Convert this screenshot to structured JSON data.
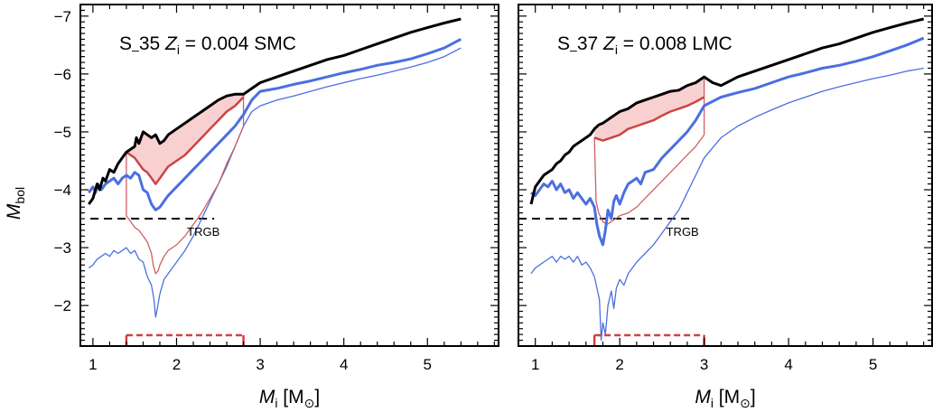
{
  "chart_data": [
    {
      "type": "line",
      "annotation": {
        "prefix": "S",
        "sub": "–",
        "mid": "35",
        "zvar": "Z",
        "zsub": "i",
        "zval": " = 0.004",
        "cloud": "SMC"
      },
      "xlabel": {
        "var": "M",
        "sub": "i",
        "unit": "[M",
        "sym": "⊙",
        "close": "]"
      },
      "ylabel": {
        "var": "M",
        "sub": "bol"
      },
      "xlim": [
        0.85,
        5.85
      ],
      "ylim": [
        -1.3,
        -7.2
      ],
      "xticks": [
        {
          "v": 1,
          "label": "1"
        },
        {
          "v": 2,
          "label": "2"
        },
        {
          "v": 3,
          "label": "3"
        },
        {
          "v": 4,
          "label": "4"
        },
        {
          "v": 5,
          "label": "5"
        }
      ],
      "yticks": [
        {
          "v": -2,
          "label": "−2"
        },
        {
          "v": -3,
          "label": "−3"
        },
        {
          "v": -4,
          "label": "−4"
        },
        {
          "v": -5,
          "label": "−5"
        },
        {
          "v": -6,
          "label": "−6"
        },
        {
          "v": -7,
          "label": "−7"
        }
      ],
      "trgb": {
        "value": -3.5,
        "xrange": [
          0.97,
          2.45
        ],
        "label": "TRGB"
      },
      "mass_range": [
        1.4,
        2.8
      ],
      "shade_color": "#f8d0d0",
      "series": [
        {
          "style": "black",
          "color": "#000000",
          "width": 3,
          "x": [
            0.95,
            1.0,
            1.05,
            1.08,
            1.12,
            1.15,
            1.2,
            1.25,
            1.3,
            1.35,
            1.4,
            1.45,
            1.5,
            1.52,
            1.55,
            1.6,
            1.65,
            1.7,
            1.75,
            1.8,
            1.85,
            1.9,
            2.0,
            2.1,
            2.2,
            2.3,
            2.4,
            2.5,
            2.6,
            2.7,
            2.8,
            2.9,
            3.0,
            3.2,
            3.4,
            3.6,
            3.8,
            4.0,
            4.2,
            4.4,
            4.6,
            4.8,
            5.0,
            5.2,
            5.4
          ],
          "y": [
            -3.75,
            -3.85,
            -4.1,
            -4.0,
            -4.2,
            -4.15,
            -4.35,
            -4.3,
            -4.45,
            -4.55,
            -4.65,
            -4.7,
            -4.75,
            -4.9,
            -4.8,
            -5.0,
            -4.95,
            -4.9,
            -4.95,
            -4.8,
            -4.85,
            -4.95,
            -5.05,
            -5.15,
            -5.25,
            -5.35,
            -5.45,
            -5.55,
            -5.62,
            -5.65,
            -5.65,
            -5.75,
            -5.85,
            -5.95,
            -6.05,
            -6.15,
            -6.25,
            -6.32,
            -6.42,
            -6.52,
            -6.62,
            -6.72,
            -6.8,
            -6.88,
            -6.95
          ]
        },
        {
          "style": "red-thick",
          "color": "#cc4444",
          "width": 2.5,
          "x": [
            1.4,
            1.5,
            1.55,
            1.6,
            1.65,
            1.7,
            1.75,
            1.8,
            1.85,
            1.9,
            2.0,
            2.1,
            2.2,
            2.3,
            2.4,
            2.5,
            2.6,
            2.7,
            2.8
          ],
          "y": [
            -4.65,
            -4.55,
            -4.45,
            -4.35,
            -4.3,
            -4.2,
            -4.1,
            -4.2,
            -4.3,
            -4.4,
            -4.5,
            -4.6,
            -4.75,
            -4.9,
            -5.05,
            -5.2,
            -5.35,
            -5.45,
            -5.6
          ]
        },
        {
          "style": "blue-thick",
          "color": "#4a6fe0",
          "width": 3,
          "x": [
            0.95,
            1.0,
            1.03,
            1.06,
            1.1,
            1.15,
            1.2,
            1.25,
            1.3,
            1.35,
            1.4,
            1.45,
            1.5,
            1.55,
            1.6,
            1.65,
            1.7,
            1.75,
            1.8,
            1.85,
            1.9,
            2.0,
            2.1,
            2.2,
            2.3,
            2.4,
            2.5,
            2.6,
            2.7,
            2.8,
            2.9,
            3.0,
            3.2,
            3.4,
            3.6,
            3.8,
            4.0,
            4.2,
            4.4,
            4.6,
            4.8,
            5.0,
            5.2,
            5.4
          ],
          "y": [
            -3.95,
            -4.05,
            -3.95,
            -4.1,
            -4.0,
            -4.1,
            -4.15,
            -4.2,
            -4.1,
            -4.2,
            -4.25,
            -4.2,
            -4.3,
            -4.25,
            -4.0,
            -3.95,
            -3.75,
            -3.65,
            -3.7,
            -3.8,
            -3.9,
            -4.05,
            -4.2,
            -4.35,
            -4.5,
            -4.65,
            -4.8,
            -4.95,
            -5.1,
            -5.3,
            -5.55,
            -5.7,
            -5.75,
            -5.82,
            -5.88,
            -5.95,
            -6.02,
            -6.08,
            -6.15,
            -6.2,
            -6.26,
            -6.35,
            -6.45,
            -6.6
          ]
        },
        {
          "style": "red-thin",
          "color": "#d06060",
          "width": 1.3,
          "x": [
            1.4,
            1.45,
            1.5,
            1.55,
            1.6,
            1.65,
            1.7,
            1.72,
            1.75,
            1.78,
            1.8,
            1.85,
            1.9,
            2.0,
            2.1,
            2.2,
            2.3,
            2.4,
            2.5,
            2.6,
            2.7,
            2.8
          ],
          "y": [
            -3.55,
            -3.45,
            -3.35,
            -3.3,
            -3.2,
            -3.1,
            -2.9,
            -2.7,
            -2.55,
            -2.6,
            -2.7,
            -2.85,
            -2.95,
            -3.05,
            -3.2,
            -3.4,
            -3.6,
            -3.85,
            -4.1,
            -4.45,
            -4.75,
            -5.1
          ]
        },
        {
          "style": "blue-thin",
          "color": "#4a6fe0",
          "width": 1.3,
          "x": [
            0.95,
            1.0,
            1.05,
            1.1,
            1.15,
            1.2,
            1.25,
            1.3,
            1.35,
            1.4,
            1.45,
            1.5,
            1.55,
            1.6,
            1.65,
            1.7,
            1.73,
            1.75,
            1.77,
            1.8,
            1.85,
            1.9,
            2.0,
            2.1,
            2.2,
            2.3,
            2.4,
            2.5,
            2.6,
            2.7,
            2.8,
            2.9,
            3.0,
            3.2,
            3.4,
            3.6,
            3.8,
            4.0,
            4.2,
            4.4,
            4.6,
            4.8,
            5.0,
            5.2,
            5.4
          ],
          "y": [
            -2.65,
            -2.7,
            -2.8,
            -2.85,
            -2.9,
            -2.85,
            -2.95,
            -2.9,
            -2.95,
            -3.0,
            -2.9,
            -2.95,
            -2.8,
            -2.75,
            -2.5,
            -2.35,
            -2.1,
            -1.8,
            -1.95,
            -2.2,
            -2.45,
            -2.55,
            -2.75,
            -2.95,
            -3.2,
            -3.5,
            -3.8,
            -4.1,
            -4.4,
            -4.75,
            -5.1,
            -5.35,
            -5.45,
            -5.55,
            -5.62,
            -5.7,
            -5.78,
            -5.85,
            -5.92,
            -5.98,
            -6.05,
            -6.12,
            -6.2,
            -6.3,
            -6.45
          ]
        }
      ]
    },
    {
      "type": "line",
      "annotation": {
        "prefix": "S",
        "sub": "–",
        "mid": "37",
        "zvar": "Z",
        "zsub": "i",
        "zval": " = 0.008",
        "cloud": "LMC"
      },
      "xlabel": {
        "var": "M",
        "sub": "i",
        "unit": "[M",
        "sym": "⊙",
        "close": "]"
      },
      "xlim": [
        0.8,
        5.7
      ],
      "ylim": [
        -1.3,
        -7.2
      ],
      "xticks": [
        {
          "v": 1,
          "label": "1"
        },
        {
          "v": 2,
          "label": "2"
        },
        {
          "v": 3,
          "label": "3"
        },
        {
          "v": 4,
          "label": "4"
        },
        {
          "v": 5,
          "label": "5"
        }
      ],
      "trgb": {
        "value": -3.5,
        "xrange": [
          0.8,
          2.85
        ],
        "label": "TRGB"
      },
      "mass_range": [
        1.7,
        3.0
      ],
      "shade_color": "#f8d0d0",
      "series": [
        {
          "style": "black",
          "color": "#000000",
          "width": 3,
          "x": [
            0.95,
            1.0,
            1.05,
            1.1,
            1.15,
            1.2,
            1.25,
            1.3,
            1.35,
            1.4,
            1.45,
            1.5,
            1.55,
            1.6,
            1.65,
            1.7,
            1.75,
            1.8,
            1.9,
            2.0,
            2.1,
            2.2,
            2.3,
            2.4,
            2.5,
            2.6,
            2.7,
            2.8,
            2.9,
            3.0,
            3.1,
            3.2,
            3.4,
            3.6,
            3.8,
            4.0,
            4.2,
            4.4,
            4.6,
            4.8,
            5.0,
            5.2,
            5.4,
            5.6
          ],
          "y": [
            -3.75,
            -4.05,
            -4.15,
            -4.25,
            -4.3,
            -4.35,
            -4.45,
            -4.5,
            -4.6,
            -4.65,
            -4.75,
            -4.8,
            -4.85,
            -4.9,
            -4.95,
            -5.05,
            -5.12,
            -5.15,
            -5.25,
            -5.35,
            -5.4,
            -5.5,
            -5.55,
            -5.6,
            -5.65,
            -5.7,
            -5.72,
            -5.8,
            -5.85,
            -5.95,
            -5.85,
            -5.8,
            -5.95,
            -6.05,
            -6.15,
            -6.25,
            -6.35,
            -6.45,
            -6.52,
            -6.62,
            -6.72,
            -6.8,
            -6.88,
            -6.95
          ]
        },
        {
          "style": "red-thick",
          "color": "#cc4444",
          "width": 2.5,
          "x": [
            1.7,
            1.8,
            1.9,
            2.0,
            2.1,
            2.2,
            2.3,
            2.4,
            2.5,
            2.6,
            2.7,
            2.8,
            2.9,
            3.0
          ],
          "y": [
            -4.9,
            -4.85,
            -4.9,
            -4.95,
            -5.05,
            -5.1,
            -5.15,
            -5.2,
            -5.28,
            -5.35,
            -5.4,
            -5.45,
            -5.52,
            -5.6
          ]
        },
        {
          "style": "blue-thick",
          "color": "#4a6fe0",
          "width": 3,
          "x": [
            0.95,
            1.0,
            1.05,
            1.1,
            1.15,
            1.2,
            1.25,
            1.3,
            1.35,
            1.4,
            1.45,
            1.5,
            1.55,
            1.6,
            1.65,
            1.7,
            1.73,
            1.76,
            1.8,
            1.83,
            1.86,
            1.9,
            1.93,
            1.96,
            2.0,
            2.05,
            2.1,
            2.2,
            2.25,
            2.3,
            2.4,
            2.5,
            2.6,
            2.7,
            2.8,
            2.9,
            3.0,
            3.2,
            3.4,
            3.6,
            3.8,
            4.0,
            4.2,
            4.4,
            4.6,
            4.8,
            5.0,
            5.2,
            5.4,
            5.6
          ],
          "y": [
            -3.95,
            -3.9,
            -4.0,
            -4.1,
            -4.05,
            -4.15,
            -4.0,
            -4.1,
            -3.95,
            -4.0,
            -3.85,
            -3.95,
            -3.85,
            -3.75,
            -3.85,
            -3.7,
            -3.4,
            -3.2,
            -3.05,
            -3.3,
            -3.65,
            -3.5,
            -3.8,
            -3.9,
            -3.75,
            -3.95,
            -4.1,
            -4.2,
            -4.1,
            -4.3,
            -4.35,
            -4.55,
            -4.7,
            -4.85,
            -5.0,
            -5.2,
            -5.45,
            -5.6,
            -5.68,
            -5.75,
            -5.85,
            -5.95,
            -6.02,
            -6.1,
            -6.15,
            -6.22,
            -6.3,
            -6.4,
            -6.5,
            -6.62
          ]
        },
        {
          "style": "red-thin",
          "color": "#d06060",
          "width": 1.3,
          "x": [
            1.7,
            1.72,
            1.75,
            1.8,
            1.85,
            1.9,
            1.95,
            2.0,
            2.1,
            2.2,
            2.3,
            2.4,
            2.5,
            2.6,
            2.7,
            2.8,
            2.9,
            3.0
          ],
          "y": [
            -4.9,
            -3.8,
            -3.6,
            -3.45,
            -3.4,
            -3.45,
            -3.5,
            -3.55,
            -3.6,
            -3.7,
            -3.85,
            -4.0,
            -4.15,
            -4.3,
            -4.45,
            -4.6,
            -4.75,
            -4.95
          ]
        },
        {
          "style": "blue-thin",
          "color": "#4a6fe0",
          "width": 1.3,
          "x": [
            0.95,
            1.0,
            1.05,
            1.1,
            1.15,
            1.2,
            1.25,
            1.3,
            1.35,
            1.4,
            1.45,
            1.5,
            1.55,
            1.6,
            1.65,
            1.7,
            1.73,
            1.76,
            1.78,
            1.8,
            1.83,
            1.86,
            1.9,
            1.93,
            1.96,
            2.0,
            2.05,
            2.1,
            2.2,
            2.3,
            2.4,
            2.5,
            2.6,
            2.7,
            2.8,
            2.9,
            3.0,
            3.2,
            3.4,
            3.6,
            3.8,
            4.0,
            4.2,
            4.4,
            4.6,
            4.8,
            5.0,
            5.2,
            5.4,
            5.6
          ],
          "y": [
            -2.55,
            -2.65,
            -2.7,
            -2.75,
            -2.8,
            -2.85,
            -2.75,
            -2.85,
            -2.8,
            -2.85,
            -2.75,
            -2.85,
            -2.7,
            -2.75,
            -2.65,
            -2.5,
            -2.3,
            -2.1,
            -1.4,
            -1.7,
            -1.5,
            -2.0,
            -2.25,
            -1.95,
            -2.3,
            -2.45,
            -2.35,
            -2.55,
            -2.75,
            -2.9,
            -3.05,
            -3.25,
            -3.45,
            -3.65,
            -3.95,
            -4.25,
            -4.55,
            -4.9,
            -5.1,
            -5.25,
            -5.38,
            -5.5,
            -5.6,
            -5.7,
            -5.78,
            -5.85,
            -5.92,
            -5.98,
            -6.05,
            -6.1
          ]
        }
      ]
    }
  ]
}
